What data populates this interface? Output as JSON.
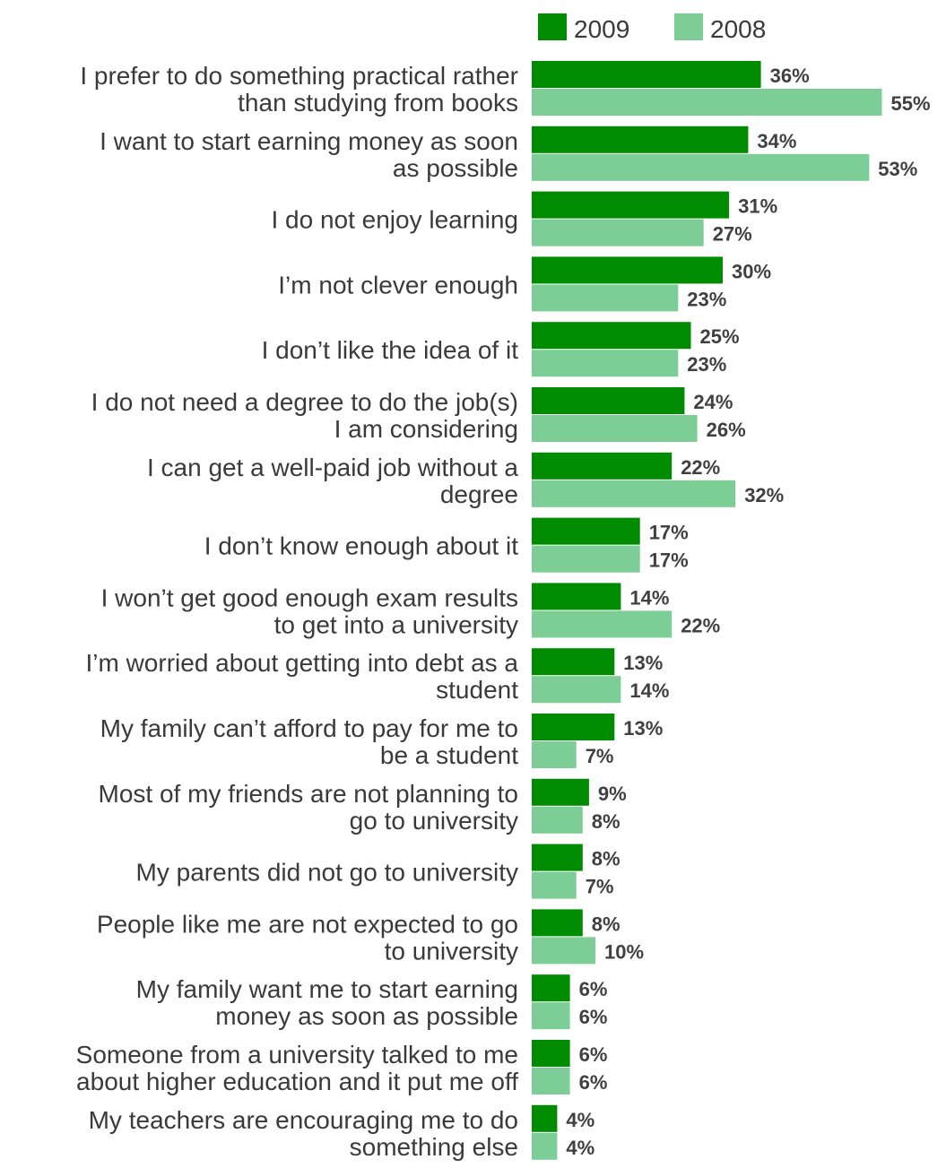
{
  "chart_data": {
    "type": "bar",
    "orientation": "horizontal",
    "categories": [
      [
        "I prefer to do something practical rather",
        "than studying from books"
      ],
      [
        "I want to start earning money as soon",
        "as possible"
      ],
      [
        "I do not enjoy learning"
      ],
      [
        "I’m not clever enough"
      ],
      [
        "I don’t like the idea of it"
      ],
      [
        "I do not need a degree to do the job(s)",
        "I am considering"
      ],
      [
        "I can get a well-paid job without a",
        "degree"
      ],
      [
        "I don’t know enough about it"
      ],
      [
        "I won’t get good enough exam results",
        "to get into a university"
      ],
      [
        "I’m worried about getting into debt as a",
        "student"
      ],
      [
        "My family can’t afford to pay for me to",
        "be a student"
      ],
      [
        "Most of my friends are not planning to",
        "go to university"
      ],
      [
        "My parents did not go to university"
      ],
      [
        "People like me are not expected to go",
        "to university"
      ],
      [
        "My family want me to start earning",
        "money as soon as possible"
      ],
      [
        "Someone from a university talked to me",
        "about higher education and it put me off"
      ],
      [
        "My teachers are encouraging me to do",
        "something else"
      ]
    ],
    "series": [
      {
        "name": "2009",
        "color": "#008c00",
        "values": [
          36,
          34,
          31,
          30,
          25,
          24,
          22,
          17,
          14,
          13,
          13,
          9,
          8,
          8,
          6,
          6,
          4
        ]
      },
      {
        "name": "2008",
        "color": "#7dce96",
        "values": [
          55,
          53,
          27,
          23,
          23,
          26,
          32,
          17,
          22,
          14,
          7,
          8,
          7,
          10,
          6,
          6,
          4
        ]
      }
    ],
    "value_suffix": "%",
    "legend_position": "top-right",
    "grid": false,
    "xlim": [
      0,
      60
    ]
  }
}
